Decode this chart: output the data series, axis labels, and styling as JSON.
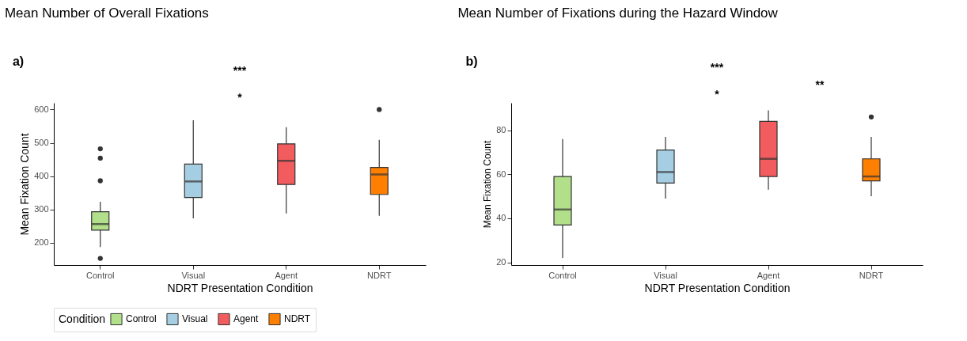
{
  "chart_data": [
    {
      "type": "box",
      "title": "Mean Number of Overall Fixations",
      "xlabel": "NDRT Presentation Condition",
      "ylabel": "Mean Fixation Count",
      "legend_title": "Condition",
      "legend": "bottom",
      "annotations": [
        "a)",
        "***",
        "*"
      ],
      "categories": [
        "Control",
        "Visual",
        "Agent",
        "NDRT"
      ],
      "series": [
        {
          "name": "Control",
          "color": "#b2df8a",
          "boxes": [
            {
              "low": 187,
              "q1": 238,
              "median": 256,
              "q3": 293,
              "high": 323,
              "outliers": [
                153,
                386,
                454,
                482
              ]
            },
            null,
            null,
            null
          ]
        },
        {
          "name": "Visual",
          "color": "#a6cee3",
          "boxes": [
            null,
            {
              "low": 273,
              "q1": 336,
              "median": 384,
              "q3": 436,
              "high": 568
            },
            null,
            null
          ]
        },
        {
          "name": "Agent",
          "color": "#f25c5e",
          "boxes": [
            null,
            null,
            {
              "low": 288,
              "q1": 375,
              "median": 446,
              "q3": 497,
              "high": 547
            },
            null
          ]
        },
        {
          "name": "NDRT",
          "color": "#ff7f00",
          "boxes": [
            null,
            null,
            null,
            {
              "low": 281,
              "q1": 345,
              "median": 405,
              "q3": 426,
              "high": 509,
              "outliers": [
                600
              ]
            }
          ]
        }
      ],
      "ylim": [
        133,
        620
      ],
      "yticks": [
        200,
        300,
        400,
        500,
        600
      ]
    },
    {
      "type": "box",
      "title": "Mean Number of Fixations during the Hazard Window",
      "xlabel": "NDRT Presentation Condition",
      "ylabel": "Mean Fixation Count",
      "annotations": [
        "b)",
        "***",
        "*",
        "**"
      ],
      "categories": [
        "Control",
        "Visual",
        "Agent",
        "NDRT"
      ],
      "series": [
        {
          "name": "Control",
          "color": "#b2df8a",
          "boxes": [
            {
              "low": 22,
              "q1": 37,
              "median": 44,
              "q3": 59,
              "high": 76
            },
            null,
            null,
            null
          ]
        },
        {
          "name": "Visual",
          "color": "#a6cee3",
          "boxes": [
            null,
            {
              "low": 49,
              "q1": 56,
              "median": 61,
              "q3": 71,
              "high": 77
            },
            null,
            null
          ]
        },
        {
          "name": "Agent",
          "color": "#f25c5e",
          "boxes": [
            null,
            null,
            {
              "low": 53,
              "q1": 59,
              "median": 67,
              "q3": 84,
              "high": 89
            },
            null
          ]
        },
        {
          "name": "NDRT",
          "color": "#ff7f00",
          "boxes": [
            null,
            null,
            null,
            {
              "low": 50,
              "q1": 57,
              "median": 59,
              "q3": 67,
              "high": 77,
              "outliers": [
                86
              ]
            }
          ]
        }
      ],
      "ylim": [
        18.8,
        92.4
      ],
      "yticks": [
        20,
        40,
        60,
        80
      ]
    }
  ]
}
